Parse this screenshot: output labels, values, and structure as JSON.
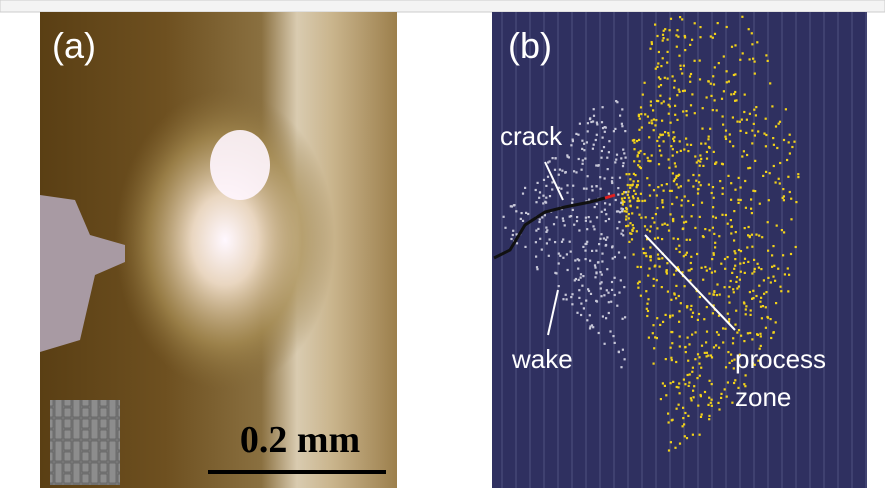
{
  "panels": [
    {
      "label": "(a)",
      "scale_bar": "0.2 mm"
    },
    {
      "label": "(b)",
      "annotations": [
        "crack",
        "wake",
        "process zone"
      ]
    }
  ]
}
